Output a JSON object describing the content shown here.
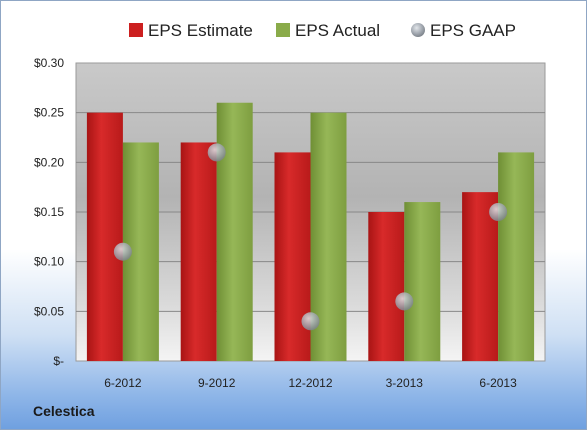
{
  "chart_data": {
    "type": "bar",
    "categories": [
      "6-2012",
      "9-2012",
      "12-2012",
      "3-2013",
      "6-2013"
    ],
    "series": [
      {
        "name": "EPS Estimate",
        "values": [
          0.25,
          0.22,
          0.21,
          0.15,
          0.17
        ],
        "color": "#cc1f1f",
        "kind": "bar"
      },
      {
        "name": "EPS Actual",
        "values": [
          0.22,
          0.26,
          0.25,
          0.16,
          0.21
        ],
        "color": "#8aab4a",
        "kind": "bar"
      },
      {
        "name": "EPS GAAP",
        "values": [
          0.11,
          0.21,
          0.04,
          0.06,
          0.15
        ],
        "color": "#b9c0c9",
        "kind": "marker"
      }
    ],
    "ylim": [
      0,
      0.3
    ],
    "yticks": [
      {
        "value": 0.3,
        "label": "$0.30"
      },
      {
        "value": 0.25,
        "label": "$0.25"
      },
      {
        "value": 0.2,
        "label": "$0.20"
      },
      {
        "value": 0.15,
        "label": "$0.15"
      },
      {
        "value": 0.1,
        "label": "$0.10"
      },
      {
        "value": 0.05,
        "label": "$0.05"
      },
      {
        "value": 0,
        "label": "$-"
      }
    ],
    "grid": true,
    "legend_position": "top"
  },
  "company": "Celestica"
}
